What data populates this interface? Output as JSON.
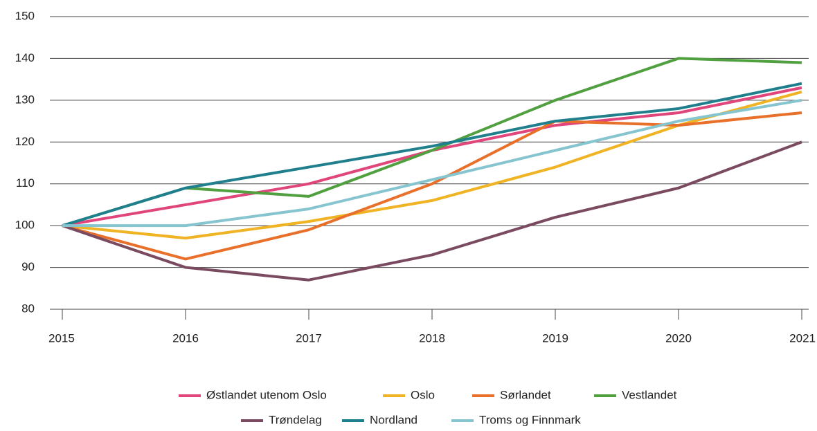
{
  "chart_data": {
    "type": "line",
    "categories": [
      "2015",
      "2016",
      "2017",
      "2018",
      "2019",
      "2020",
      "2021"
    ],
    "series": [
      {
        "name": "Østlandet utenom Oslo",
        "color": "#e0457b",
        "values": [
          100,
          105,
          110,
          118,
          124,
          127,
          133
        ]
      },
      {
        "name": "Oslo",
        "color": "#f0b323",
        "values": [
          100,
          97,
          101,
          106,
          114,
          124,
          132
        ]
      },
      {
        "name": "Sørlandet",
        "color": "#e8702a",
        "values": [
          100,
          92,
          99,
          110,
          125,
          124,
          127
        ]
      },
      {
        "name": "Vestlandet",
        "color": "#50a040",
        "values": [
          100,
          109,
          107,
          118,
          130,
          140,
          139
        ]
      },
      {
        "name": "Trøndelag",
        "color": "#7a4a60",
        "values": [
          100,
          90,
          87,
          93,
          102,
          109,
          120
        ]
      },
      {
        "name": "Nordland",
        "color": "#1f7f8c",
        "values": [
          100,
          109,
          114,
          119,
          125,
          128,
          134
        ]
      },
      {
        "name": "Troms og Finnmark",
        "color": "#86c5cf",
        "values": [
          100,
          100,
          104,
          111,
          118,
          125,
          130
        ]
      }
    ],
    "ylim": [
      80,
      150
    ],
    "yticks": [
      80,
      90,
      100,
      110,
      120,
      130,
      140,
      150
    ],
    "grid": true,
    "legend": "bottom"
  }
}
